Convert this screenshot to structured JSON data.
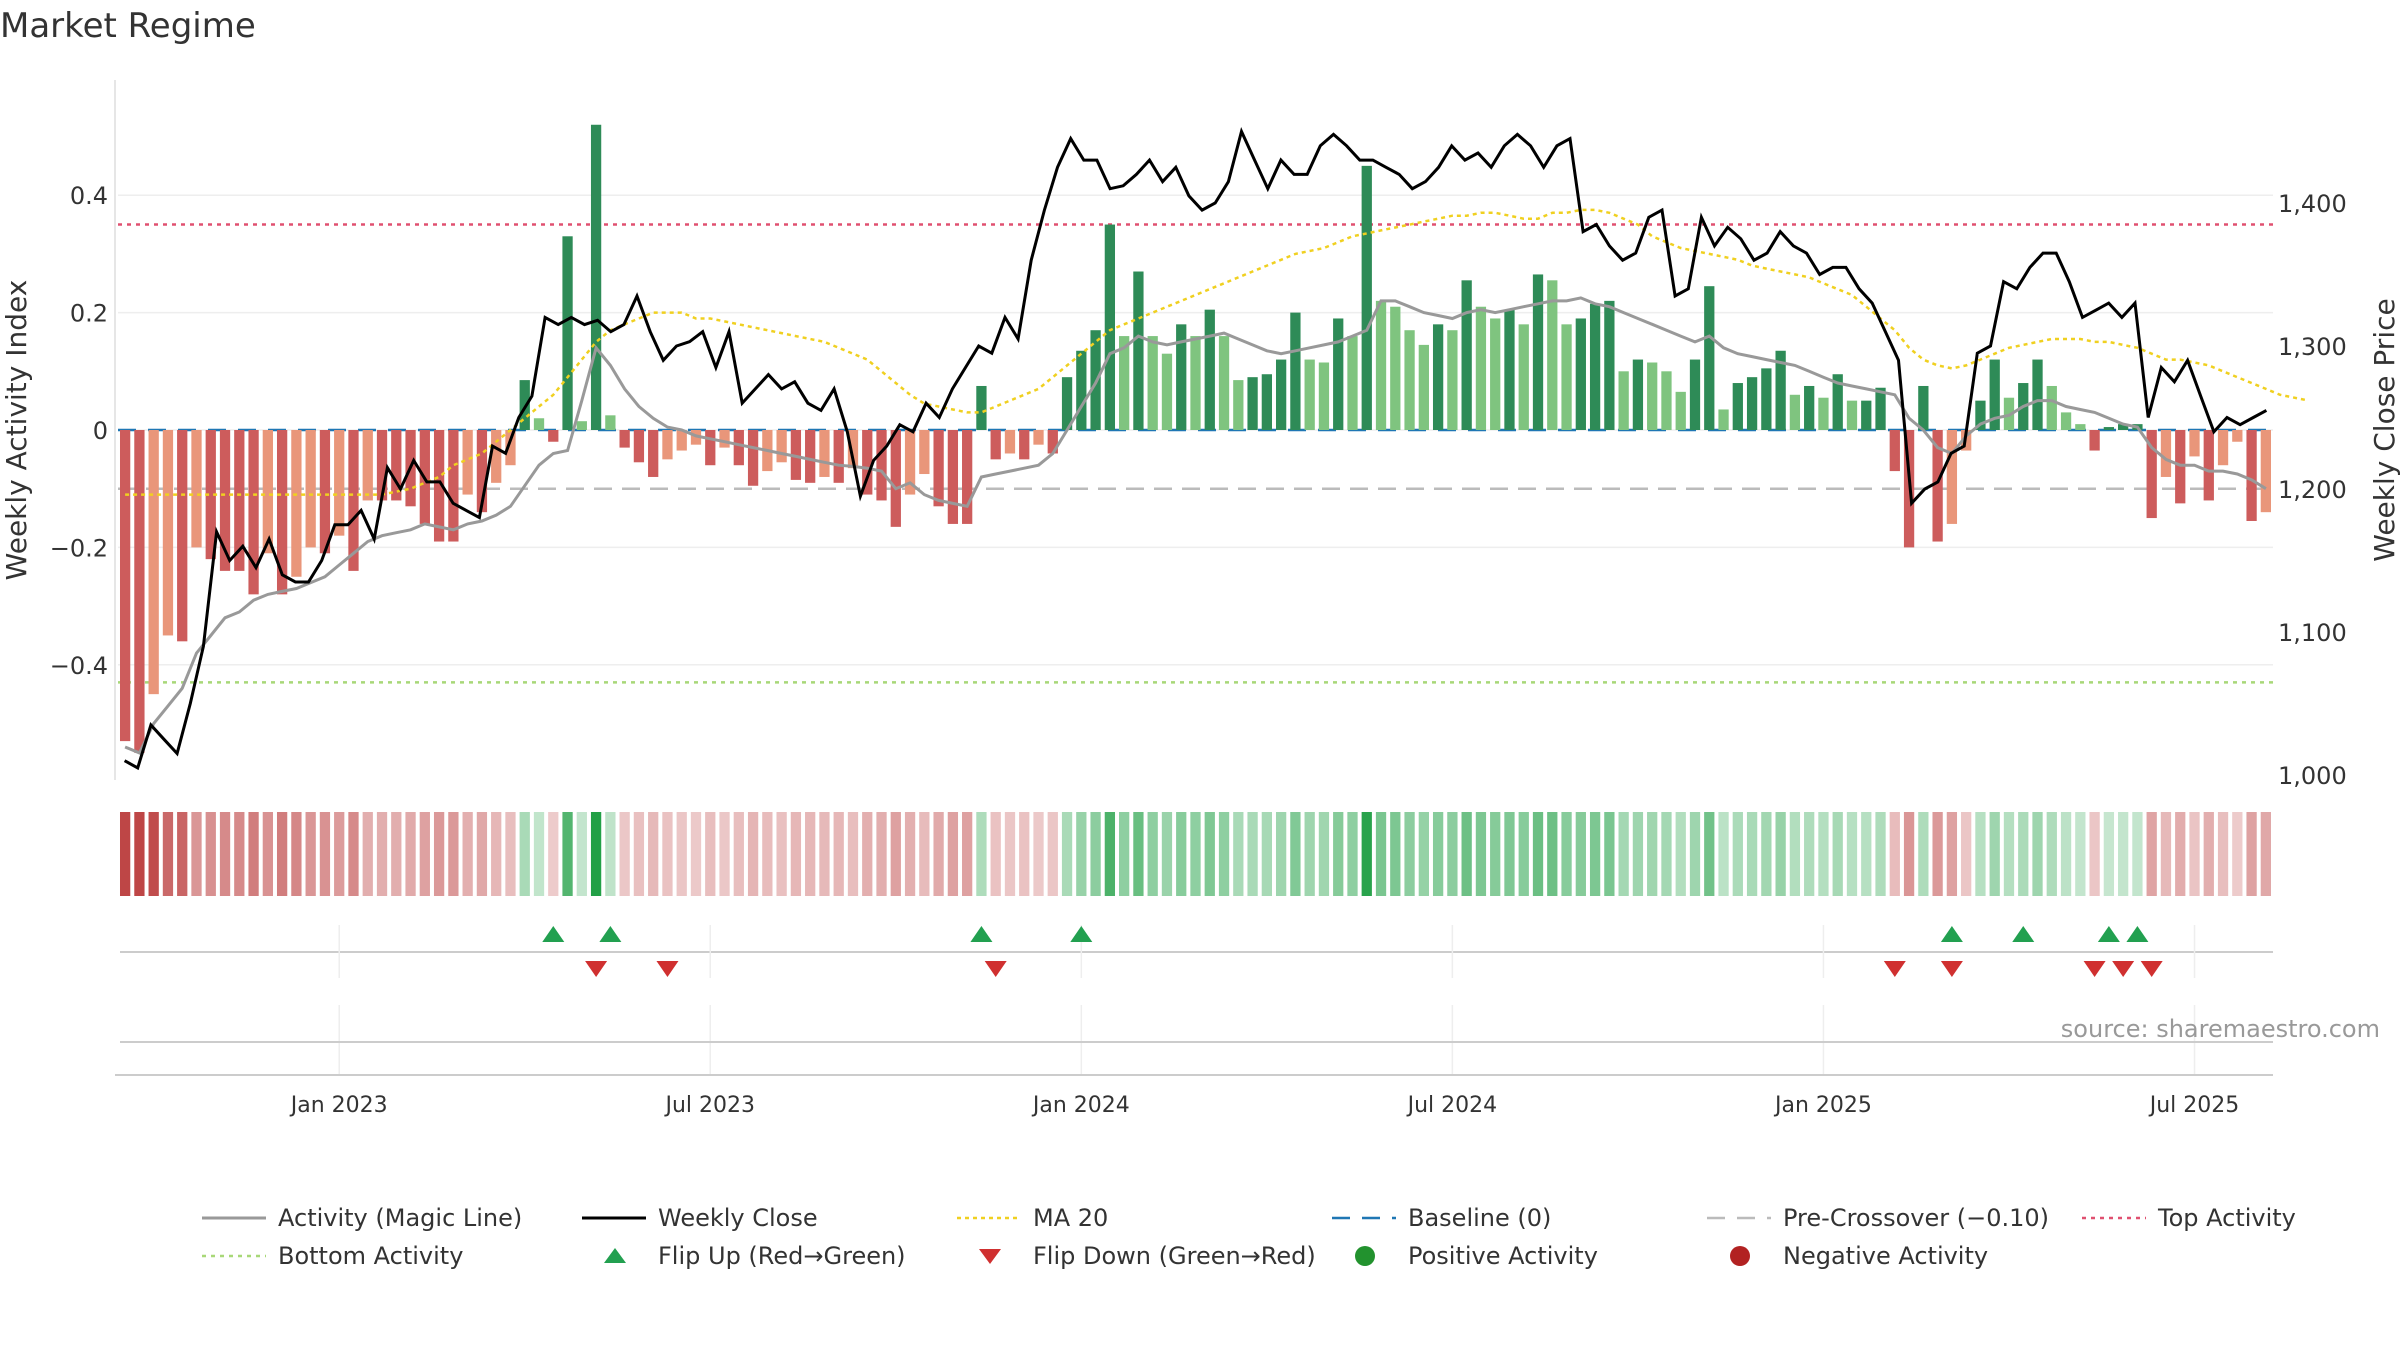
{
  "title": "Market Regime",
  "source": "source: sharemaestro.com",
  "colors": {
    "green_dark": "#2e8b57",
    "green_light": "#7fc47f",
    "red_dark": "#cd5c5c",
    "red_light": "#e9967a",
    "activity_line": "#999999",
    "close_line": "#000000",
    "ma20": "#f0d020",
    "baseline": "#1f77b4",
    "precross": "#bbbbbb",
    "top_activity": "#e05070",
    "bottom_activity": "#a8d878",
    "flip_up": "#22a050",
    "flip_down": "#d03030"
  },
  "chart_data": {
    "type": "bar",
    "title": "Market Regime",
    "ylabel": "Weekly Activity Index",
    "y2label": "Weekly Close Price",
    "ylim": [
      -0.6,
      0.6
    ],
    "y2lim": [
      1000,
      1400
    ],
    "y_ticks": [
      {
        "value": 0.4,
        "label": "0.4"
      },
      {
        "value": 0.2,
        "label": "0.2"
      },
      {
        "value": 0,
        "label": "0"
      },
      {
        "value": -0.2,
        "label": "−0.2"
      },
      {
        "value": -0.4,
        "label": "−0.4"
      }
    ],
    "y2_ticks": [
      {
        "value": 1400,
        "label": "1,400"
      },
      {
        "value": 1300,
        "label": "1,300"
      },
      {
        "value": 1200,
        "label": "1,200"
      },
      {
        "value": 1100,
        "label": "1,100"
      },
      {
        "value": 1000,
        "label": "1,000"
      }
    ],
    "x_ticks": [
      {
        "index": 15,
        "label": "Jan 2023"
      },
      {
        "index": 41,
        "label": "Jul 2023"
      },
      {
        "index": 67,
        "label": "Jan 2024"
      },
      {
        "index": 93,
        "label": "Jul 2024"
      },
      {
        "index": 119,
        "label": "Jan 2025"
      },
      {
        "index": 145,
        "label": "Jul 2025"
      }
    ],
    "grid": true,
    "reference_lines": {
      "baseline": 0,
      "pre_crossover": -0.1,
      "top_activity": 0.35,
      "bottom_activity": -0.43
    },
    "activity": [
      -0.53,
      -0.55,
      -0.45,
      -0.35,
      -0.36,
      -0.2,
      -0.22,
      -0.24,
      -0.24,
      -0.28,
      -0.21,
      -0.28,
      -0.25,
      -0.2,
      -0.21,
      -0.18,
      -0.24,
      -0.12,
      -0.12,
      -0.12,
      -0.13,
      -0.16,
      -0.19,
      -0.19,
      -0.11,
      -0.14,
      -0.09,
      -0.06,
      0.085,
      0.02,
      -0.02,
      0.33,
      0.015,
      0.52,
      0.025,
      -0.03,
      -0.055,
      -0.08,
      -0.05,
      -0.035,
      -0.025,
      -0.06,
      -0.03,
      -0.06,
      -0.095,
      -0.07,
      -0.055,
      -0.085,
      -0.09,
      -0.08,
      -0.09,
      -0.065,
      -0.11,
      -0.12,
      -0.165,
      -0.11,
      -0.075,
      -0.13,
      -0.16,
      -0.16,
      0.075,
      -0.05,
      -0.04,
      -0.05,
      -0.025,
      -0.04,
      0.09,
      0.135,
      0.17,
      0.35,
      0.16,
      0.27,
      0.16,
      0.13,
      0.18,
      0.16,
      0.205,
      0.16,
      0.085,
      0.09,
      0.095,
      0.12,
      0.2,
      0.12,
      0.115,
      0.19,
      0.16,
      0.45,
      0.22,
      0.21,
      0.17,
      0.145,
      0.18,
      0.17,
      0.255,
      0.21,
      0.19,
      0.205,
      0.18,
      0.265,
      0.255,
      0.18,
      0.19,
      0.215,
      0.22,
      0.1,
      0.12,
      0.115,
      0.1,
      0.065,
      0.12,
      0.245,
      0.035,
      0.08,
      0.09,
      0.105,
      0.135,
      0.06,
      0.075,
      0.055,
      0.095,
      0.05,
      0.05,
      0.072,
      -0.07,
      -0.2,
      0.075,
      -0.19,
      -0.16,
      -0.035,
      0.05,
      0.12,
      0.055,
      0.08,
      0.12,
      0.075,
      0.03,
      0.01,
      -0.035,
      0.005,
      0.01,
      0.01,
      -0.15,
      -0.08,
      -0.125,
      -0.045,
      -0.12,
      -0.06,
      -0.02,
      -0.155,
      -0.14
    ],
    "activity_line": [
      -0.54,
      -0.55,
      -0.5,
      -0.47,
      -0.44,
      -0.38,
      -0.35,
      -0.32,
      -0.31,
      -0.29,
      -0.28,
      -0.275,
      -0.27,
      -0.26,
      -0.25,
      -0.23,
      -0.21,
      -0.19,
      -0.18,
      -0.175,
      -0.17,
      -0.16,
      -0.165,
      -0.17,
      -0.16,
      -0.155,
      -0.145,
      -0.13,
      -0.095,
      -0.06,
      -0.04,
      -0.035,
      0.05,
      0.14,
      0.11,
      0.07,
      0.04,
      0.02,
      0.005,
      0,
      -0.01,
      -0.015,
      -0.02,
      -0.025,
      -0.03,
      -0.035,
      -0.04,
      -0.045,
      -0.05,
      -0.055,
      -0.06,
      -0.062,
      -0.065,
      -0.07,
      -0.1,
      -0.09,
      -0.11,
      -0.12,
      -0.125,
      -0.13,
      -0.08,
      -0.075,
      -0.07,
      -0.065,
      -0.06,
      -0.04,
      0,
      0.04,
      0.08,
      0.13,
      0.14,
      0.16,
      0.15,
      0.145,
      0.15,
      0.155,
      0.16,
      0.165,
      0.155,
      0.145,
      0.135,
      0.13,
      0.135,
      0.14,
      0.145,
      0.15,
      0.16,
      0.17,
      0.22,
      0.22,
      0.21,
      0.2,
      0.195,
      0.19,
      0.2,
      0.205,
      0.2,
      0.205,
      0.21,
      0.215,
      0.22,
      0.22,
      0.225,
      0.215,
      0.21,
      0.2,
      0.19,
      0.18,
      0.17,
      0.16,
      0.15,
      0.16,
      0.14,
      0.13,
      0.125,
      0.12,
      0.115,
      0.11,
      0.1,
      0.09,
      0.08,
      0.075,
      0.07,
      0.065,
      0.06,
      0.02,
      0,
      -0.03,
      -0.04,
      -0.01,
      0.01,
      0.02,
      0.025,
      0.04,
      0.05,
      0.05,
      0.04,
      0.035,
      0.03,
      0.02,
      0.01,
      0.005,
      -0.03,
      -0.05,
      -0.06,
      -0.06,
      -0.07,
      -0.07,
      -0.075,
      -0.085,
      -0.1
    ],
    "weekly_close": [
      1010,
      1005,
      1035,
      1025,
      1015,
      1050,
      1090,
      1170,
      1150,
      1160,
      1145,
      1165,
      1140,
      1135,
      1135,
      1150,
      1175,
      1175,
      1185,
      1165,
      1215,
      1200,
      1220,
      1205,
      1205,
      1190,
      1185,
      1180,
      1230,
      1225,
      1250,
      1265,
      1320,
      1315,
      1320,
      1315,
      1318,
      1310,
      1315,
      1335,
      1310,
      1290,
      1300,
      1303,
      1310,
      1285,
      1310,
      1260,
      1270,
      1280,
      1270,
      1275,
      1260,
      1255,
      1270,
      1240,
      1195,
      1220,
      1230,
      1245,
      1240,
      1260,
      1250,
      1270,
      1285,
      1300,
      1295,
      1320,
      1305,
      1360,
      1395,
      1425,
      1445,
      1430,
      1430,
      1410,
      1412,
      1420,
      1430,
      1415,
      1425,
      1405,
      1395,
      1400,
      1415,
      1450,
      1430,
      1410,
      1430,
      1420,
      1420,
      1440,
      1448,
      1440,
      1430,
      1430,
      1425,
      1420,
      1410,
      1415,
      1425,
      1440,
      1430,
      1435,
      1425,
      1440,
      1448,
      1440,
      1425,
      1440,
      1445,
      1380,
      1385,
      1370,
      1360,
      1365,
      1390,
      1395,
      1335,
      1340,
      1390,
      1370,
      1383,
      1375,
      1360,
      1365,
      1380,
      1370,
      1365,
      1350,
      1355,
      1355,
      1340,
      1330,
      1310,
      1290,
      1190,
      1200,
      1205,
      1225,
      1230,
      1295,
      1300,
      1345,
      1340,
      1355,
      1365,
      1365,
      1345,
      1320,
      1325,
      1330,
      1320,
      1330,
      1250,
      1285,
      1275,
      1290,
      1265,
      1240,
      1250,
      1245,
      1250,
      1255
    ],
    "ma20": [
      -0.11,
      -0.11,
      -0.11,
      -0.11,
      -0.11,
      -0.11,
      -0.11,
      -0.11,
      -0.11,
      -0.11,
      -0.11,
      -0.11,
      -0.11,
      -0.11,
      -0.11,
      -0.11,
      -0.11,
      -0.11,
      -0.11,
      -0.105,
      -0.1,
      -0.09,
      -0.08,
      -0.06,
      -0.05,
      -0.04,
      -0.02,
      0,
      0.02,
      0.04,
      0.06,
      0.09,
      0.12,
      0.15,
      0.17,
      0.18,
      0.19,
      0.2,
      0.2,
      0.2,
      0.19,
      0.19,
      0.185,
      0.18,
      0.175,
      0.17,
      0.165,
      0.16,
      0.155,
      0.15,
      0.14,
      0.13,
      0.12,
      0.1,
      0.08,
      0.06,
      0.045,
      0.04,
      0.035,
      0.03,
      0.03,
      0.04,
      0.05,
      0.06,
      0.07,
      0.09,
      0.11,
      0.13,
      0.15,
      0.17,
      0.18,
      0.19,
      0.2,
      0.21,
      0.22,
      0.23,
      0.24,
      0.25,
      0.26,
      0.27,
      0.28,
      0.29,
      0.3,
      0.305,
      0.31,
      0.32,
      0.33,
      0.335,
      0.34,
      0.345,
      0.35,
      0.355,
      0.36,
      0.365,
      0.365,
      0.37,
      0.37,
      0.365,
      0.36,
      0.36,
      0.37,
      0.37,
      0.375,
      0.375,
      0.37,
      0.36,
      0.35,
      0.33,
      0.32,
      0.31,
      0.305,
      0.3,
      0.295,
      0.29,
      0.28,
      0.275,
      0.27,
      0.265,
      0.26,
      0.25,
      0.24,
      0.23,
      0.21,
      0.19,
      0.17,
      0.14,
      0.12,
      0.11,
      0.105,
      0.11,
      0.12,
      0.13,
      0.14,
      0.145,
      0.15,
      0.155,
      0.155,
      0.155,
      0.15,
      0.15,
      0.145,
      0.14,
      0.13,
      0.12,
      0.12,
      0.115,
      0.11,
      0.1,
      0.09,
      0.08,
      0.07,
      0.06,
      0.055,
      0.05
    ],
    "flip_up": [
      30,
      34,
      60,
      67,
      128,
      133,
      139,
      141
    ],
    "flip_down": [
      33,
      38,
      61,
      124,
      128,
      138,
      140,
      142
    ]
  },
  "legend": [
    {
      "label": "Activity (Magic Line)",
      "style": "line-gray"
    },
    {
      "label": "Weekly Close",
      "style": "line-black"
    },
    {
      "label": "MA 20",
      "style": "dot-yellow"
    },
    {
      "label": "Baseline (0)",
      "style": "dash-blue"
    },
    {
      "label": "Pre-Crossover (−0.10)",
      "style": "dash-gray"
    },
    {
      "label": "Top Activity",
      "style": "dot-pink"
    },
    {
      "label": "Bottom Activity",
      "style": "dot-green"
    },
    {
      "label": "Flip Up (Red→Green)",
      "style": "tri-up"
    },
    {
      "label": "Flip Down (Green→Red)",
      "style": "tri-down"
    },
    {
      "label": "Positive Activity",
      "style": "circle-green"
    },
    {
      "label": "Negative Activity",
      "style": "circle-red"
    }
  ]
}
